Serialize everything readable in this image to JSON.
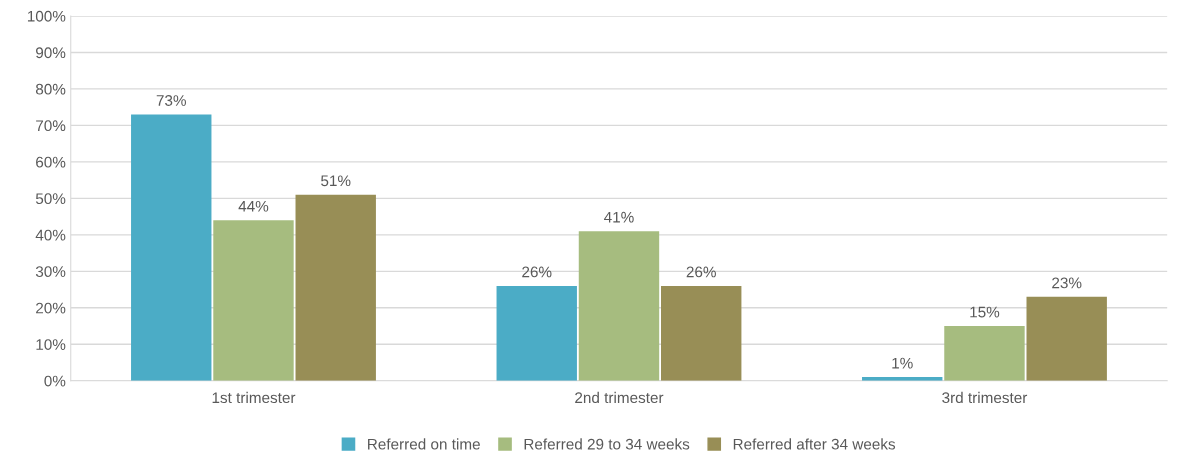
{
  "chart_data": {
    "type": "bar",
    "categories": [
      "1st trimester",
      "2nd trimester",
      "3rd trimester"
    ],
    "series": [
      {
        "name": "Referred on time",
        "color": "#4bacc6",
        "values": [
          73,
          26,
          1
        ],
        "value_labels": [
          "73%",
          "26%",
          "1%"
        ]
      },
      {
        "name": "Referred 29 to 34 weeks",
        "color": "#a6bc7f",
        "values": [
          44,
          41,
          15
        ],
        "value_labels": [
          "44%",
          "41%",
          "15%"
        ]
      },
      {
        "name": "Referred after 34 weeks",
        "color": "#988e56",
        "values": [
          51,
          26,
          23
        ],
        "value_labels": [
          "51%",
          "26%",
          "23%"
        ]
      }
    ],
    "ylim": [
      0,
      100
    ],
    "yticks": [
      {
        "value": 0,
        "label": "0%"
      },
      {
        "value": 10,
        "label": "10%"
      },
      {
        "value": 20,
        "label": "20%"
      },
      {
        "value": 30,
        "label": "30%"
      },
      {
        "value": 40,
        "label": "40%"
      },
      {
        "value": 50,
        "label": "50%"
      },
      {
        "value": 60,
        "label": "60%"
      },
      {
        "value": 70,
        "label": "70%"
      },
      {
        "value": 80,
        "label": "80%"
      },
      {
        "value": 90,
        "label": "90%"
      },
      {
        "value": 100,
        "label": "100%"
      }
    ],
    "grid": "y",
    "legend": "bottom"
  }
}
